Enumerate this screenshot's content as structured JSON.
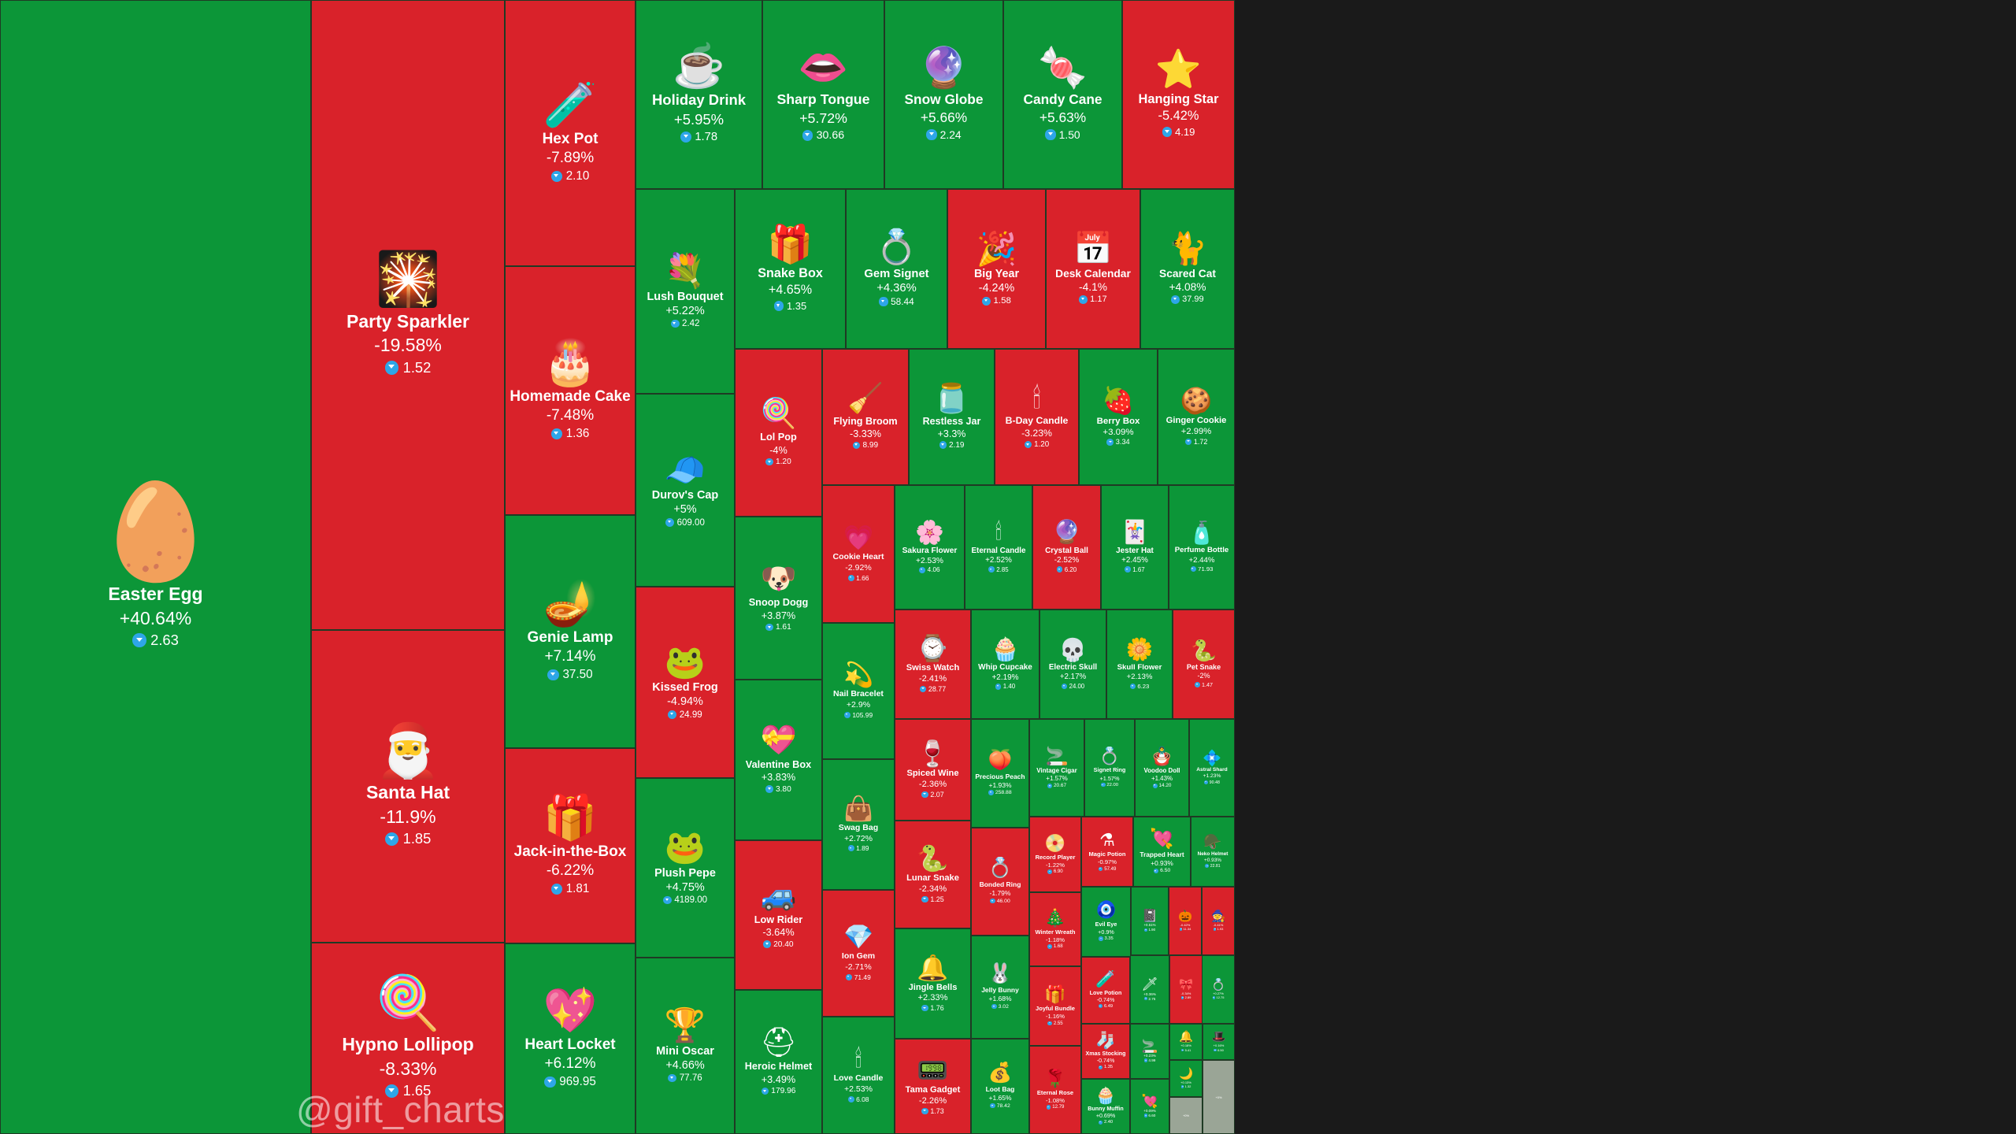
{
  "chart_data": {
    "type": "treemap",
    "value_unit": "percent change",
    "price_currency_icon": "ton-diamond-icon",
    "colors": {
      "up": "#0c9638",
      "down": "#d9222a",
      "border": "#1f3a24",
      "currency": "#2ea6e8"
    },
    "items": [
      {
        "name": "Easter Egg",
        "change": "+40.64%",
        "price": "2.63",
        "icon": "🥚"
      },
      {
        "name": "Party Sparkler",
        "change": "-19.58%",
        "price": "1.52",
        "icon": "🎇"
      },
      {
        "name": "Santa Hat",
        "change": "-11.9%",
        "price": "1.85",
        "icon": "🎅"
      },
      {
        "name": "Hypno Lollipop",
        "change": "-8.33%",
        "price": "1.65",
        "icon": "🍭"
      },
      {
        "name": "Hex Pot",
        "change": "-7.89%",
        "price": "2.10",
        "icon": "🧪"
      },
      {
        "name": "Homemade Cake",
        "change": "-7.48%",
        "price": "1.36",
        "icon": "🎂"
      },
      {
        "name": "Genie Lamp",
        "change": "+7.14%",
        "price": "37.50",
        "icon": "🪔"
      },
      {
        "name": "Jack-in-the-Box",
        "change": "-6.22%",
        "price": "1.81",
        "icon": "🎁"
      },
      {
        "name": "Heart Locket",
        "change": "+6.12%",
        "price": "969.95",
        "icon": "💖"
      },
      {
        "name": "Holiday Drink",
        "change": "+5.95%",
        "price": "1.78",
        "icon": "☕"
      },
      {
        "name": "Sharp Tongue",
        "change": "+5.72%",
        "price": "30.66",
        "icon": "👄"
      },
      {
        "name": "Snow Globe",
        "change": "+5.66%",
        "price": "2.24",
        "icon": "🔮"
      },
      {
        "name": "Candy Cane",
        "change": "+5.63%",
        "price": "1.50",
        "icon": "🍬"
      },
      {
        "name": "Hanging Star",
        "change": "-5.42%",
        "price": "4.19",
        "icon": "⭐"
      },
      {
        "name": "Lush Bouquet",
        "change": "+5.22%",
        "price": "2.42",
        "icon": "💐"
      },
      {
        "name": "Durov's Cap",
        "change": "+5%",
        "price": "609.00",
        "icon": "🧢"
      },
      {
        "name": "Kissed Frog",
        "change": "-4.94%",
        "price": "24.99",
        "icon": "🐸"
      },
      {
        "name": "Plush Pepe",
        "change": "+4.75%",
        "price": "4189.00",
        "icon": "🐸"
      },
      {
        "name": "Mini Oscar",
        "change": "+4.66%",
        "price": "77.76",
        "icon": "🏆"
      },
      {
        "name": "Snake Box",
        "change": "+4.65%",
        "price": "1.35",
        "icon": "🎁"
      },
      {
        "name": "Gem Signet",
        "change": "+4.36%",
        "price": "58.44",
        "icon": "💍"
      },
      {
        "name": "Big Year",
        "change": "-4.24%",
        "price": "1.58",
        "icon": "🎉"
      },
      {
        "name": "Desk Calendar",
        "change": "-4.1%",
        "price": "1.17",
        "icon": "📅"
      },
      {
        "name": "Scared Cat",
        "change": "+4.08%",
        "price": "37.99",
        "icon": "🐈"
      },
      {
        "name": "Lol Pop",
        "change": "-4%",
        "price": "1.20",
        "icon": "🍭"
      },
      {
        "name": "Snoop Dogg",
        "change": "+3.87%",
        "price": "1.61",
        "icon": "🐶"
      },
      {
        "name": "Valentine Box",
        "change": "+3.83%",
        "price": "3.80",
        "icon": "💝"
      },
      {
        "name": "Low Rider",
        "change": "-3.64%",
        "price": "20.40",
        "icon": "🚙"
      },
      {
        "name": "Heroic Helmet",
        "change": "+3.49%",
        "price": "179.96",
        "icon": "⛑"
      },
      {
        "name": "Flying Broom",
        "change": "-3.33%",
        "price": "8.99",
        "icon": "🧹"
      },
      {
        "name": "Restless Jar",
        "change": "+3.3%",
        "price": "2.19",
        "icon": "🫙"
      },
      {
        "name": "B-Day Candle",
        "change": "-3.23%",
        "price": "1.20",
        "icon": "🕯"
      },
      {
        "name": "Berry Box",
        "change": "+3.09%",
        "price": "3.34",
        "icon": "🍓"
      },
      {
        "name": "Ginger Cookie",
        "change": "+2.99%",
        "price": "1.72",
        "icon": "🍪"
      },
      {
        "name": "Cookie Heart",
        "change": "-2.92%",
        "price": "1.66",
        "icon": "💗"
      },
      {
        "name": "Nail Bracelet",
        "change": "+2.9%",
        "price": "105.99",
        "icon": "💫"
      },
      {
        "name": "Swag Bag",
        "change": "+2.72%",
        "price": "1.89",
        "icon": "👜"
      },
      {
        "name": "Ion Gem",
        "change": "-2.71%",
        "price": "71.49",
        "icon": "💎"
      },
      {
        "name": "Love Candle",
        "change": "+2.53%",
        "price": "6.08",
        "icon": "🕯"
      },
      {
        "name": "Sakura Flower",
        "change": "+2.53%",
        "price": "4.06",
        "icon": "🌸"
      },
      {
        "name": "Eternal Candle",
        "change": "+2.52%",
        "price": "2.85",
        "icon": "🕯"
      },
      {
        "name": "Crystal Ball",
        "change": "-2.52%",
        "price": "6.20",
        "icon": "🔮"
      },
      {
        "name": "Jester Hat",
        "change": "+2.45%",
        "price": "1.67",
        "icon": "🃏"
      },
      {
        "name": "Perfume Bottle",
        "change": "+2.44%",
        "price": "71.93",
        "icon": "🧴"
      },
      {
        "name": "Swiss Watch",
        "change": "-2.41%",
        "price": "28.77",
        "icon": "⌚"
      },
      {
        "name": "Whip Cupcake",
        "change": "+2.19%",
        "price": "1.40",
        "icon": "🧁"
      },
      {
        "name": "Electric Skull",
        "change": "+2.17%",
        "price": "24.00",
        "icon": "💀"
      },
      {
        "name": "Skull Flower",
        "change": "+2.13%",
        "price": "6.23",
        "icon": "🌼"
      },
      {
        "name": "Pet Snake",
        "change": "-2%",
        "price": "1.47",
        "icon": "🐍"
      },
      {
        "name": "Spiced Wine",
        "change": "-2.36%",
        "price": "2.07",
        "icon": "🍷"
      },
      {
        "name": "Precious Peach",
        "change": "+1.93%",
        "price": "258.88",
        "icon": "🍑"
      },
      {
        "name": "Vintage Cigar",
        "change": "+1.57%",
        "price": "20.67",
        "icon": "🚬"
      },
      {
        "name": "Signet Ring",
        "change": "+1.57%",
        "price": "22.00",
        "icon": "💍"
      },
      {
        "name": "Voodoo Doll",
        "change": "+1.43%",
        "price": "14.20",
        "icon": "🪆"
      },
      {
        "name": "Astral Shard",
        "change": "+1.23%",
        "price": "90.48",
        "icon": "💠"
      },
      {
        "name": "Lunar Snake",
        "change": "-2.34%",
        "price": "1.25",
        "icon": "🐍"
      },
      {
        "name": "Bonded Ring",
        "change": "-1.79%",
        "price": "46.00",
        "icon": "💍"
      },
      {
        "name": "Record Player",
        "change": "-1.22%",
        "price": "6.90",
        "icon": "📀"
      },
      {
        "name": "Magic Potion",
        "change": "-0.97%",
        "price": "57.49",
        "icon": "⚗"
      },
      {
        "name": "Trapped Heart",
        "change": "+0.93%",
        "price": "6.50",
        "icon": "💘"
      },
      {
        "name": "Neko Helmet",
        "change": "+0.93%",
        "price": "22.81",
        "icon": "🪖"
      },
      {
        "name": "Jingle Bells",
        "change": "+2.33%",
        "price": "1.76",
        "icon": "🔔"
      },
      {
        "name": "Jelly Bunny",
        "change": "+1.68%",
        "price": "3.02",
        "icon": "🐰"
      },
      {
        "name": "Winter Wreath",
        "change": "-1.18%",
        "price": "1.68",
        "icon": "🎄"
      },
      {
        "name": "Evil Eye",
        "change": "+0.9%",
        "price": "3.35",
        "icon": "🧿"
      },
      {
        "name": "Star Notepad",
        "change": "+0.51%",
        "price": "1.90",
        "icon": "📓"
      },
      {
        "name": "Mad Pumpkin",
        "change": "-0.42%",
        "price": "11.34",
        "icon": "🎃"
      },
      {
        "name": "Witch Hat",
        "change": "-0.41%",
        "price": "1.93",
        "icon": "🧙"
      },
      {
        "name": "Tama Gadget",
        "change": "-2.26%",
        "price": "1.73",
        "icon": "📟"
      },
      {
        "name": "Loot Bag",
        "change": "+1.65%",
        "price": "78.42",
        "icon": "💰"
      },
      {
        "name": "Joyful Bundle",
        "change": "-1.16%",
        "price": "2.55",
        "icon": "🎁"
      },
      {
        "name": "Love Potion",
        "change": "-0.74%",
        "price": "6.49",
        "icon": "🧪"
      },
      {
        "name": "Light Sword",
        "change": "+0.36%",
        "price": "2.75",
        "icon": "🗡"
      },
      {
        "name": "Bow Tie",
        "change": "-0.34%",
        "price": "2.89",
        "icon": "🎀"
      },
      {
        "name": "Diamond Ring",
        "change": "+0.27%",
        "price": "12.75",
        "icon": "💍"
      },
      {
        "name": "Xmas Stocking",
        "change": "-0.74%",
        "price": "1.35",
        "icon": "🧦"
      },
      {
        "name": "Eternal Rose",
        "change": "-1.08%",
        "price": "12.79",
        "icon": "🌹"
      },
      {
        "name": "Bunny Muffin",
        "change": "+0.69%",
        "price": "2.40",
        "icon": "🧁"
      },
      {
        "name": "Sleigh Bell",
        "change": "+0.18%",
        "price": "5.41",
        "icon": "🔔"
      },
      {
        "name": "Top Hat",
        "change": "+0.16%",
        "price": "6.50",
        "icon": "🎩"
      },
      {
        "name": "Snoop Cigar",
        "change": "+0.23%",
        "price": "4.99",
        "icon": "🚬"
      },
      {
        "name": "Moonlight Mpe",
        "change": "+0.13%",
        "price": "1.32",
        "icon": "🌙"
      },
      {
        "name": "Cupid Charm",
        "change": "+0.09%",
        "price": "6.60",
        "icon": "💘"
      },
      {
        "name": "Toy Bear",
        "change": "+0%",
        "price": "",
        "icon": ""
      },
      {
        "name": "Ginger Mittens",
        "change": "+0%",
        "price": "",
        "icon": ""
      }
    ]
  },
  "watermark": "@gift_charts"
}
